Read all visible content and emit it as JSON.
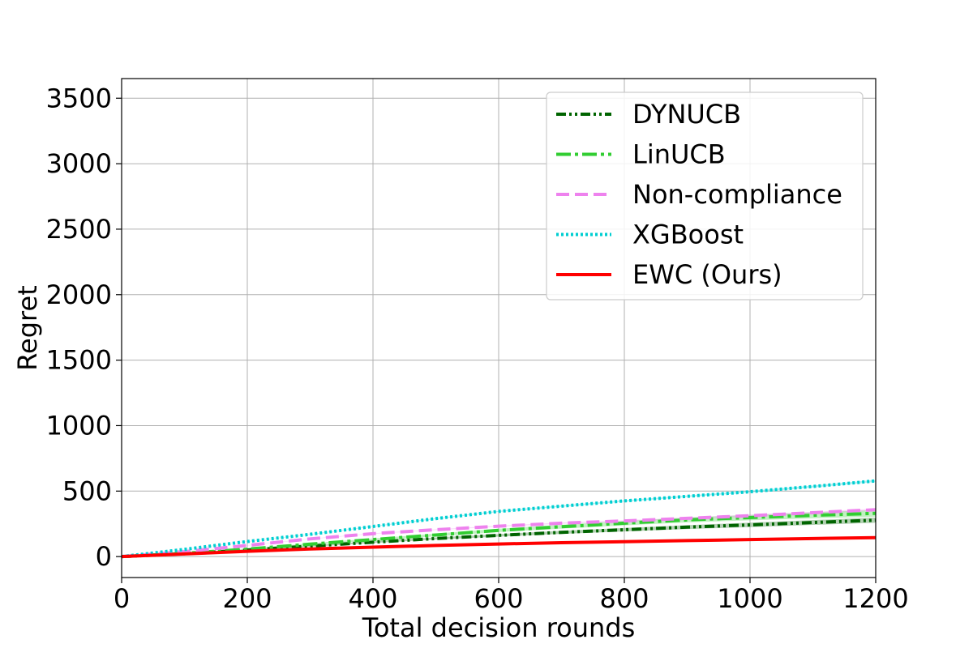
{
  "chart_data": {
    "type": "line",
    "xlabel": "Total decision rounds",
    "ylabel": "Regret",
    "xlim": [
      0,
      1200
    ],
    "ylim": [
      -160,
      3650
    ],
    "xticks": [
      0,
      200,
      400,
      600,
      800,
      1000,
      1200
    ],
    "yticks": [
      0,
      500,
      1000,
      1500,
      2000,
      2500,
      3000,
      3500
    ],
    "grid": true,
    "legend_position": "top-right",
    "x": [
      0,
      100,
      200,
      300,
      400,
      500,
      600,
      700,
      800,
      900,
      1000,
      1100,
      1200
    ],
    "series": [
      {
        "name": "DYNUCB",
        "color": "#006400",
        "style": "dashdotdot",
        "values": [
          0,
          22,
          50,
          80,
          110,
          138,
          162,
          185,
          205,
          225,
          242,
          260,
          278
        ],
        "band": 20
      },
      {
        "name": "LinUCB",
        "color": "#32cd32",
        "style": "dashdot",
        "values": [
          0,
          25,
          57,
          95,
          130,
          165,
          200,
          228,
          255,
          280,
          298,
          315,
          330
        ],
        "band": 25
      },
      {
        "name": "Non-compliance",
        "color": "#ee82ee",
        "style": "dashed",
        "values": [
          0,
          38,
          85,
          135,
          175,
          205,
          232,
          255,
          272,
          292,
          312,
          335,
          358
        ],
        "band": 8
      },
      {
        "name": "XGBoost",
        "color": "#00ced1",
        "style": "dotted",
        "values": [
          0,
          55,
          115,
          170,
          230,
          290,
          345,
          385,
          425,
          460,
          495,
          535,
          578
        ],
        "band": 8
      },
      {
        "name": "EWC (Ours)",
        "color": "#ff0000",
        "style": "solid",
        "values": [
          0,
          20,
          40,
          58,
          72,
          85,
          96,
          106,
          114,
          122,
          130,
          138,
          145
        ],
        "band": 4
      }
    ]
  }
}
